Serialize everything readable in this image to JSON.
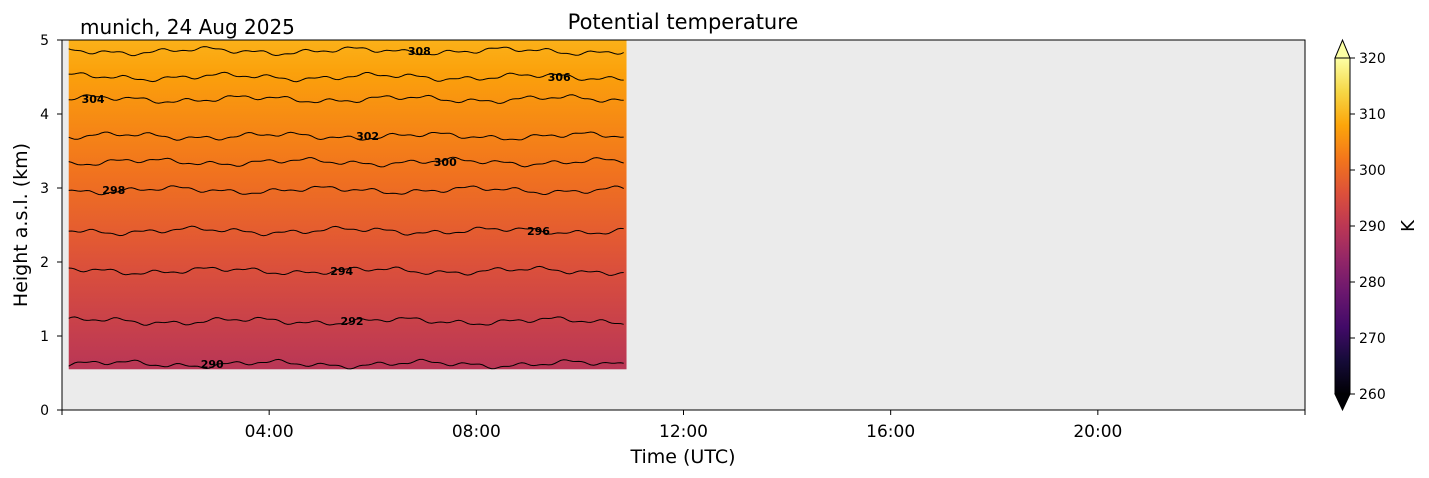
{
  "chart_data": {
    "type": "heatmap",
    "title": "Potential temperature",
    "location_date": "munich, 24 Aug 2025",
    "xlabel": "Time (UTC)",
    "ylabel": "Height a.s.l. (km)",
    "x_range_hours": [
      0,
      24
    ],
    "x_ticks": [
      {
        "hour": 4,
        "label": "04:00"
      },
      {
        "hour": 8,
        "label": "08:00"
      },
      {
        "hour": 12,
        "label": "12:00"
      },
      {
        "hour": 16,
        "label": "16:00"
      },
      {
        "hour": 20,
        "label": "20:00"
      }
    ],
    "ylim": [
      0,
      5
    ],
    "y_ticks": [
      "0",
      "1",
      "2",
      "3",
      "4",
      "5"
    ],
    "data_extent": {
      "x_hours": [
        0.13,
        10.9
      ],
      "y_km": [
        0.55,
        5.0
      ]
    },
    "missing_data_color": "#ebebeb",
    "colormap": "inferno",
    "colorbar": {
      "label": "K",
      "vmin": 260,
      "vmax": 320,
      "ticks": [
        "260",
        "270",
        "280",
        "290",
        "300",
        "310",
        "320"
      ],
      "extend": "both"
    },
    "contours": [
      {
        "level": "290",
        "height_km": 0.62,
        "label_x_hour": 2.9
      },
      {
        "level": "292",
        "height_km": 1.2,
        "label_x_hour": 5.6
      },
      {
        "level": "294",
        "height_km": 1.88,
        "label_x_hour": 5.4
      },
      {
        "level": "296",
        "height_km": 2.42,
        "label_x_hour": 9.2
      },
      {
        "level": "298",
        "height_km": 2.97,
        "label_x_hour": 1.0
      },
      {
        "level": "300",
        "height_km": 3.35,
        "label_x_hour": 7.4
      },
      {
        "level": "302",
        "height_km": 3.7,
        "label_x_hour": 5.9
      },
      {
        "level": "304",
        "height_km": 4.2,
        "label_x_hour": 0.6
      },
      {
        "level": "306",
        "height_km": 4.5,
        "label_x_hour": 9.6
      },
      {
        "level": "308",
        "height_km": 4.85,
        "label_x_hour": 6.9
      }
    ],
    "surface_temperature_k": 289.5,
    "top_temperature_k": 309.5,
    "grid": false
  }
}
